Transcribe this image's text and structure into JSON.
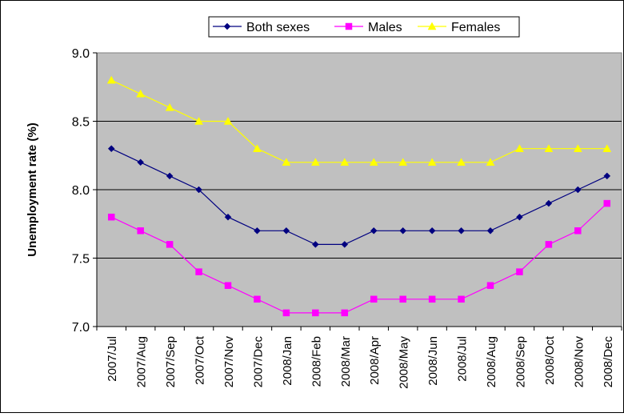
{
  "chart_data": {
    "type": "line",
    "title": "",
    "xlabel": "",
    "ylabel": "Unemployment rate (%)",
    "ylim": [
      7.0,
      9.0
    ],
    "yticks": [
      "7.0",
      "7.5",
      "8.0",
      "8.5",
      "9.0"
    ],
    "grid": true,
    "legend_position": "top-center",
    "plot_background": "#c0c0c0",
    "categories": [
      "2007/Jul",
      "2007/Aug",
      "2007/Sep",
      "2007/Oct",
      "2007/Nov",
      "2007/Dec",
      "2008/Jan",
      "2008/Feb",
      "2008/Mar",
      "2008/Apr",
      "2008/May",
      "2008/Jun",
      "2008/Jul",
      "2008/Aug",
      "2008/Sep",
      "2008/Oct",
      "2008/Nov",
      "2008/Dec"
    ],
    "series": [
      {
        "name": "Both sexes",
        "color": "#000080",
        "marker": "diamond",
        "values": [
          8.3,
          8.2,
          8.1,
          8.0,
          7.8,
          7.7,
          7.7,
          7.6,
          7.6,
          7.7,
          7.7,
          7.7,
          7.7,
          7.7,
          7.8,
          7.9,
          8.0,
          8.1
        ]
      },
      {
        "name": "Males",
        "color": "#ff00ff",
        "marker": "square",
        "values": [
          7.8,
          7.7,
          7.6,
          7.4,
          7.3,
          7.2,
          7.1,
          7.1,
          7.1,
          7.2,
          7.2,
          7.2,
          7.2,
          7.3,
          7.4,
          7.6,
          7.7,
          7.9
        ]
      },
      {
        "name": "Females",
        "color": "#ffff00",
        "marker": "triangle",
        "values": [
          8.8,
          8.7,
          8.6,
          8.5,
          8.5,
          8.3,
          8.2,
          8.2,
          8.2,
          8.2,
          8.2,
          8.2,
          8.2,
          8.2,
          8.3,
          8.3,
          8.3,
          8.3
        ]
      }
    ]
  }
}
